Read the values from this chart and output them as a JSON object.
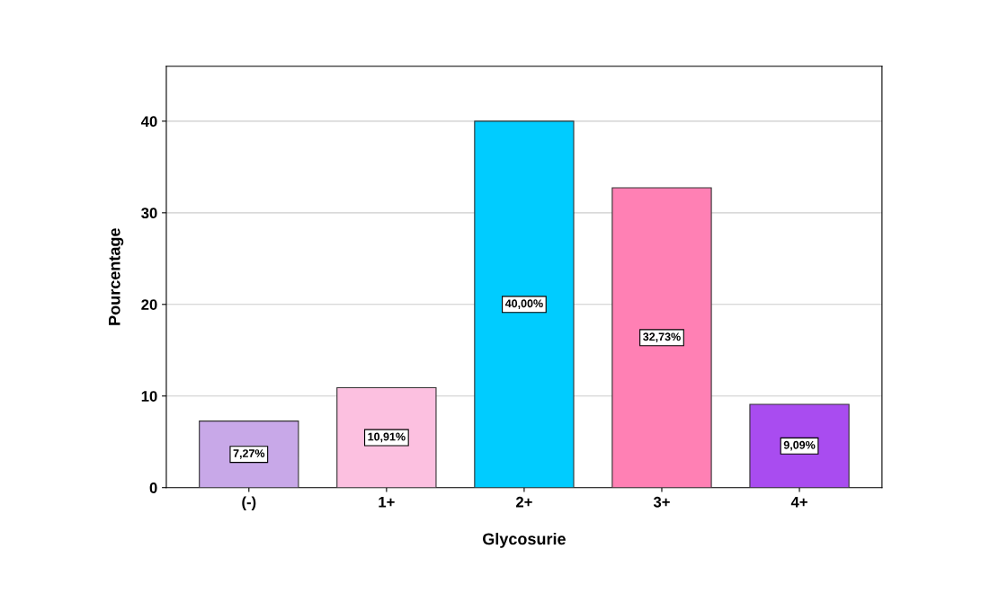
{
  "chart_data": {
    "type": "bar",
    "xlabel": "Glycosurie",
    "ylabel": "Pourcentage",
    "categories": [
      "(-)",
      "1+",
      "2+",
      "3+",
      "4+"
    ],
    "values": [
      7.27,
      10.91,
      40.0,
      32.73,
      9.09
    ],
    "value_labels": [
      "7,27%",
      "10,91%",
      "40,00%",
      "32,73%",
      "9,09%"
    ],
    "colors": [
      "#c8a8e8",
      "#fcc0e0",
      "#00ccff",
      "#ff80b4",
      "#a94cf0"
    ],
    "ylim": [
      0,
      46
    ],
    "yticks": [
      0,
      10,
      20,
      30,
      40
    ],
    "grid": "y"
  }
}
